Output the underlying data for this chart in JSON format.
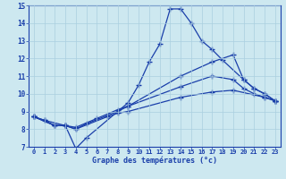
{
  "title": "Graphe des températures (°c)",
  "bg_color": "#cde8f0",
  "grid_color": "#aacfdf",
  "line_color": "#1a3faa",
  "xlim": [
    -0.5,
    23.5
  ],
  "ylim": [
    7,
    15
  ],
  "xticks": [
    0,
    1,
    2,
    3,
    4,
    5,
    6,
    7,
    8,
    9,
    10,
    11,
    12,
    13,
    14,
    15,
    16,
    17,
    18,
    19,
    20,
    21,
    22,
    23
  ],
  "yticks": [
    7,
    8,
    9,
    10,
    11,
    12,
    13,
    14,
    15
  ],
  "line1_x": [
    0,
    1,
    2,
    3,
    4,
    5,
    9,
    10,
    11,
    12,
    13,
    14,
    15,
    16,
    17,
    18,
    20,
    21,
    22,
    23
  ],
  "line1_y": [
    8.7,
    8.5,
    8.2,
    8.2,
    6.9,
    7.5,
    9.5,
    10.5,
    11.8,
    12.8,
    14.8,
    14.8,
    14.0,
    13.0,
    12.5,
    11.9,
    10.8,
    10.3,
    10.0,
    9.6
  ],
  "line2_x": [
    0,
    1,
    3,
    4,
    5,
    8,
    9,
    14,
    17,
    19,
    20,
    21,
    22,
    23
  ],
  "line2_y": [
    8.7,
    8.5,
    8.2,
    8.0,
    8.3,
    9.0,
    9.3,
    11.0,
    11.8,
    12.2,
    10.8,
    10.3,
    10.0,
    9.6
  ],
  "line3_x": [
    0,
    2,
    3,
    4,
    6,
    8,
    9,
    14,
    17,
    19,
    20,
    21,
    22,
    23
  ],
  "line3_y": [
    8.7,
    8.2,
    8.2,
    8.1,
    8.6,
    9.1,
    9.3,
    10.4,
    11.0,
    10.8,
    10.3,
    10.0,
    9.8,
    9.6
  ],
  "line4_x": [
    0,
    2,
    3,
    4,
    7,
    8,
    9,
    14,
    17,
    19,
    22,
    23
  ],
  "line4_y": [
    8.7,
    8.2,
    8.2,
    8.0,
    8.7,
    8.9,
    9.0,
    9.8,
    10.1,
    10.2,
    9.8,
    9.6
  ],
  "marker": "+",
  "marker_size": 4.5,
  "linewidth": 0.9
}
